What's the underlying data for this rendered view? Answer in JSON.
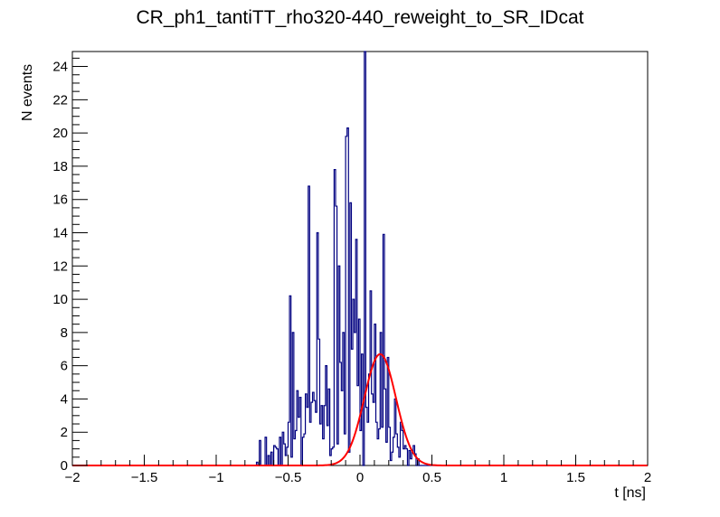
{
  "chart_data": {
    "type": "bar",
    "style": "step-histogram-with-fit",
    "title": "CR_ph1_tantiTT_rho320-440_reweight_to_SR_IDcat",
    "xlabel": "t [ns]",
    "ylabel": "N events",
    "xlim": [
      -2,
      2
    ],
    "ylim": [
      0,
      24.9
    ],
    "xticks": [
      -2,
      -1.5,
      -1,
      -0.5,
      0,
      0.5,
      1,
      1.5,
      2
    ],
    "xtick_labels": [
      "−2",
      "−1.5",
      "−1",
      "−0.5",
      "0",
      "0.5",
      "1",
      "1.5",
      "2"
    ],
    "yticks": [
      0,
      2,
      4,
      6,
      8,
      10,
      12,
      14,
      16,
      18,
      20,
      22,
      24
    ],
    "ytick_labels": [
      "0",
      "2",
      "4",
      "6",
      "8",
      "10",
      "12",
      "14",
      "16",
      "18",
      "20",
      "22",
      "24"
    ],
    "grid": false,
    "colors": {
      "histogram": "#000080",
      "fit": "#ff0000"
    },
    "series": [
      {
        "type": "step",
        "bin_width": 0.01,
        "bin_edges_start": -0.72,
        "values": [
          0.2,
          0,
          1.5,
          0,
          0,
          0,
          1.7,
          0,
          0.6,
          0,
          0.8,
          0,
          1.2,
          1.1,
          1.0,
          0,
          1.7,
          0,
          2.0,
          1.3,
          0.6,
          1.1,
          2.6,
          10.2,
          0.5,
          8.0,
          1.6,
          2.1,
          4.5,
          2.9,
          4.1,
          0,
          1.7,
          1.9,
          4.3,
          3.5,
          16.8,
          2.6,
          3.8,
          4.4,
          3.9,
          3.2,
          14.0,
          7.6,
          2.5,
          3.6,
          1.6,
          3.6,
          6.0,
          2.4,
          4.6,
          0.6,
          1.0,
          1.1,
          17.8,
          15.6,
          1.3,
          12.0,
          6.2,
          4.5,
          8.0,
          1.9,
          19.8,
          20.3,
          0.8,
          15.8,
          7.0,
          10.0,
          8.0,
          13.6,
          4.8,
          8.8,
          2.1,
          6.7,
          0,
          26.0,
          3.5,
          2.6,
          5.5,
          10.5,
          4.3,
          3.8,
          8.5,
          2.6,
          1.6,
          2.2,
          8.0,
          2.3,
          13.9,
          4.6,
          1.4,
          6.5,
          2.3,
          0.3,
          0.8,
          1.7,
          4.0,
          1.9,
          1.1,
          0.5,
          2.6,
          2.1,
          1.0,
          1.2,
          1.0,
          0,
          0.9,
          0.4,
          0.8,
          1.2,
          0.7,
          0,
          0.4,
          0,
          0,
          0,
          0,
          0,
          0,
          0,
          0,
          0,
          0,
          0,
          0,
          0,
          0,
          0,
          0,
          0,
          0,
          0,
          0,
          0,
          0,
          0,
          0,
          0,
          0,
          0,
          0,
          0,
          0,
          0,
          0,
          0,
          0,
          0,
          0,
          0,
          0,
          0,
          0,
          0,
          0,
          0,
          0,
          0,
          0,
          0,
          0,
          0,
          0,
          0,
          0,
          0,
          0,
          0,
          0,
          0,
          0,
          0,
          0,
          0,
          0,
          0,
          0,
          0,
          0,
          0,
          0,
          0,
          0,
          0,
          0,
          0,
          0,
          0,
          0,
          0,
          0,
          0,
          0,
          0
        ]
      },
      {
        "type": "gaussian-fit",
        "amplitude": 6.7,
        "mean": 0.14,
        "sigma": 0.11
      }
    ]
  }
}
